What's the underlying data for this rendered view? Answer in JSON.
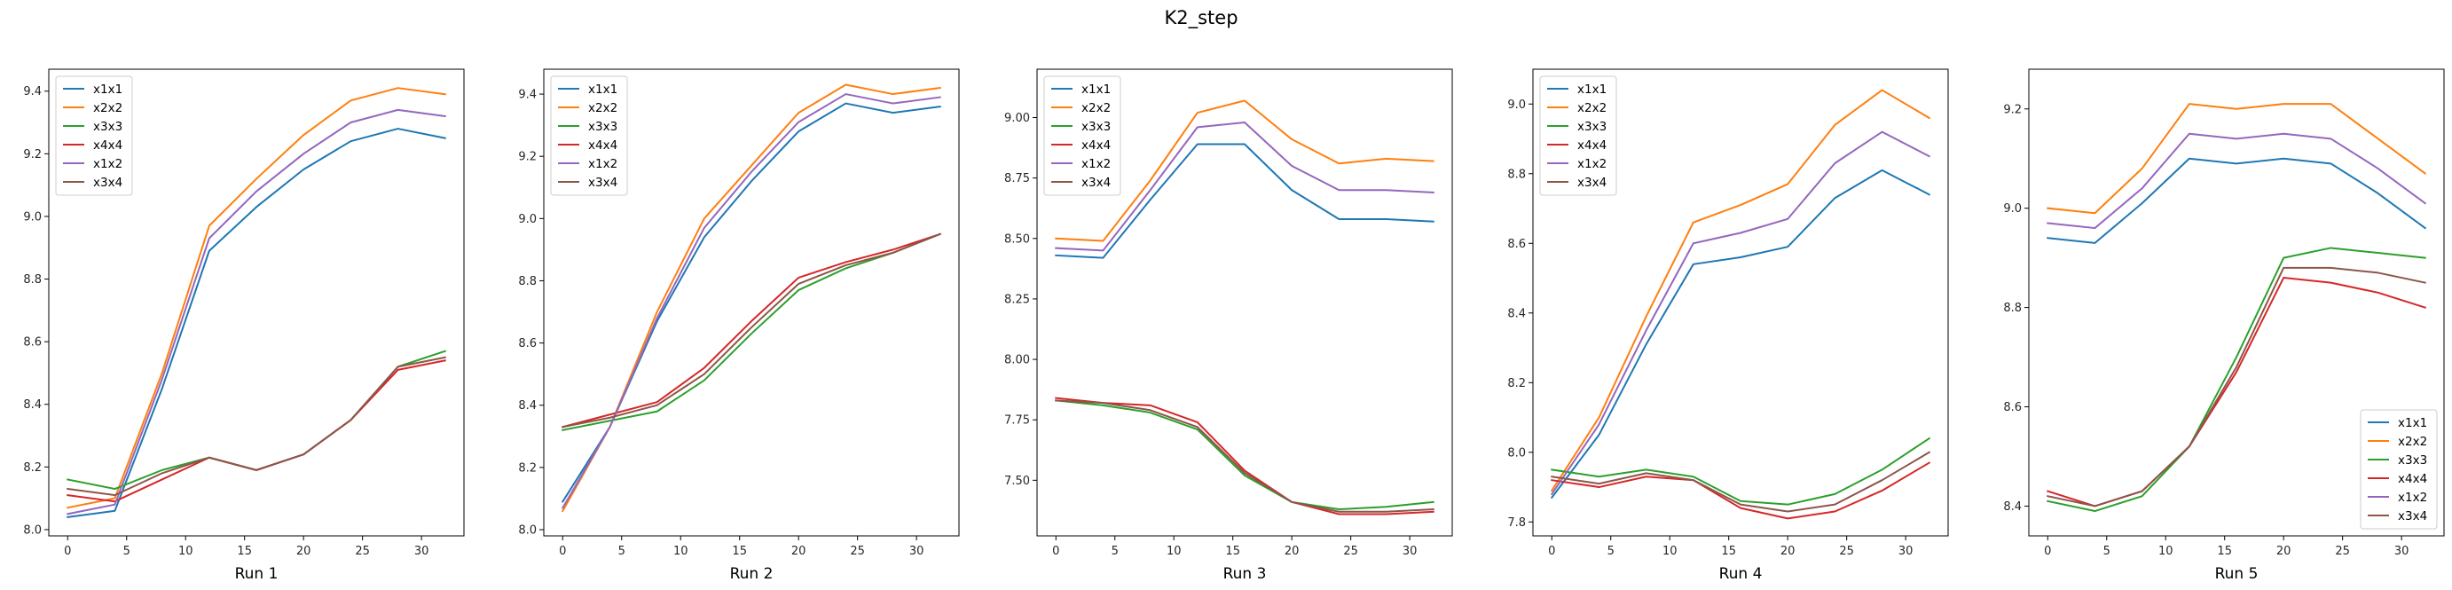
{
  "figure": {
    "title": "K2_step"
  },
  "colors": {
    "x1x1": "#1f77b4",
    "x2x2": "#ff7f0e",
    "x3x3": "#2ca02c",
    "x4x4": "#d62728",
    "x1x2": "#9467bd",
    "x3x4": "#8c564b"
  },
  "chart_data": [
    {
      "type": "line",
      "xlabel": "Run 1",
      "legend_loc": "upper-left",
      "x": [
        0,
        4,
        8,
        12,
        16,
        20,
        24,
        28,
        32
      ],
      "xticks": [
        "0",
        "5",
        "10",
        "15",
        "20",
        "25",
        "30"
      ],
      "xtick_values": [
        0,
        5,
        10,
        15,
        20,
        25,
        30
      ],
      "ylim": [
        7.98,
        9.47
      ],
      "yticks": [
        "8.0",
        "8.2",
        "8.4",
        "8.6",
        "8.8",
        "9.0",
        "9.2",
        "9.4"
      ],
      "ytick_values": [
        8.0,
        8.2,
        8.4,
        8.6,
        8.8,
        9.0,
        9.2,
        9.4
      ],
      "series": [
        {
          "name": "x1x1",
          "values": [
            8.04,
            8.06,
            8.45,
            8.89,
            9.03,
            9.15,
            9.24,
            9.28,
            9.25
          ]
        },
        {
          "name": "x2x2",
          "values": [
            8.07,
            8.1,
            8.5,
            8.97,
            9.12,
            9.26,
            9.37,
            9.41,
            9.39
          ]
        },
        {
          "name": "x3x3",
          "values": [
            8.16,
            8.13,
            8.19,
            8.23,
            8.19,
            8.24,
            8.35,
            8.52,
            8.57
          ]
        },
        {
          "name": "x4x4",
          "values": [
            8.11,
            8.09,
            8.16,
            8.23,
            8.19,
            8.24,
            8.35,
            8.51,
            8.54
          ]
        },
        {
          "name": "x1x2",
          "values": [
            8.05,
            8.08,
            8.48,
            8.93,
            9.08,
            9.2,
            9.3,
            9.34,
            9.32
          ]
        },
        {
          "name": "x3x4",
          "values": [
            8.13,
            8.11,
            8.18,
            8.23,
            8.19,
            8.24,
            8.35,
            8.52,
            8.55
          ]
        }
      ]
    },
    {
      "type": "line",
      "xlabel": "Run 2",
      "legend_loc": "upper-left",
      "x": [
        0,
        4,
        8,
        12,
        16,
        20,
        24,
        28,
        32
      ],
      "xticks": [
        "0",
        "5",
        "10",
        "15",
        "20",
        "25",
        "30"
      ],
      "xtick_values": [
        0,
        5,
        10,
        15,
        20,
        25,
        30
      ],
      "ylim": [
        7.98,
        9.48
      ],
      "yticks": [
        "8.0",
        "8.2",
        "8.4",
        "8.6",
        "8.8",
        "9.0",
        "9.2",
        "9.4"
      ],
      "ytick_values": [
        8.0,
        8.2,
        8.4,
        8.6,
        8.8,
        9.0,
        9.2,
        9.4
      ],
      "series": [
        {
          "name": "x1x1",
          "values": [
            8.09,
            8.33,
            8.67,
            8.94,
            9.12,
            9.28,
            9.37,
            9.34,
            9.36
          ]
        },
        {
          "name": "x2x2",
          "values": [
            8.06,
            8.33,
            8.7,
            9.0,
            9.17,
            9.34,
            9.43,
            9.4,
            9.42
          ]
        },
        {
          "name": "x3x3",
          "values": [
            8.32,
            8.35,
            8.38,
            8.48,
            8.63,
            8.77,
            8.84,
            8.89,
            8.95
          ]
        },
        {
          "name": "x4x4",
          "values": [
            8.33,
            8.37,
            8.41,
            8.52,
            8.67,
            8.81,
            8.86,
            8.9,
            8.95
          ]
        },
        {
          "name": "x1x2",
          "values": [
            8.07,
            8.33,
            8.68,
            8.97,
            9.15,
            9.31,
            9.4,
            9.37,
            9.39
          ]
        },
        {
          "name": "x3x4",
          "values": [
            8.33,
            8.36,
            8.4,
            8.5,
            8.65,
            8.79,
            8.85,
            8.89,
            8.95
          ]
        }
      ]
    },
    {
      "type": "line",
      "xlabel": "Run 3",
      "legend_loc": "upper-left",
      "x": [
        0,
        4,
        8,
        12,
        16,
        20,
        24,
        28,
        32
      ],
      "xticks": [
        "0",
        "5",
        "10",
        "15",
        "20",
        "25",
        "30"
      ],
      "xtick_values": [
        0,
        5,
        10,
        15,
        20,
        25,
        30
      ],
      "ylim": [
        7.27,
        9.2
      ],
      "yticks": [
        "7.50",
        "7.75",
        "8.00",
        "8.25",
        "8.50",
        "8.75",
        "9.00"
      ],
      "ytick_values": [
        7.5,
        7.75,
        8.0,
        8.25,
        8.5,
        8.75,
        9.0
      ],
      "series": [
        {
          "name": "x1x1",
          "values": [
            8.43,
            8.42,
            8.66,
            8.89,
            8.89,
            8.7,
            8.58,
            8.58,
            8.57
          ]
        },
        {
          "name": "x2x2",
          "values": [
            8.5,
            8.49,
            8.74,
            9.02,
            9.07,
            8.91,
            8.81,
            8.83,
            8.82
          ]
        },
        {
          "name": "x3x3",
          "values": [
            7.83,
            7.81,
            7.78,
            7.71,
            7.52,
            7.41,
            7.38,
            7.39,
            7.41
          ]
        },
        {
          "name": "x4x4",
          "values": [
            7.84,
            7.82,
            7.81,
            7.74,
            7.54,
            7.41,
            7.36,
            7.36,
            7.37
          ]
        },
        {
          "name": "x1x2",
          "values": [
            8.46,
            8.45,
            8.7,
            8.96,
            8.98,
            8.8,
            8.7,
            8.7,
            8.69
          ]
        },
        {
          "name": "x3x4",
          "values": [
            7.83,
            7.82,
            7.79,
            7.72,
            7.53,
            7.41,
            7.37,
            7.37,
            7.38
          ]
        }
      ]
    },
    {
      "type": "line",
      "xlabel": "Run 4",
      "legend_loc": "upper-left",
      "x": [
        0,
        4,
        8,
        12,
        16,
        20,
        24,
        28,
        32
      ],
      "xticks": [
        "0",
        "5",
        "10",
        "15",
        "20",
        "25",
        "30"
      ],
      "xtick_values": [
        0,
        5,
        10,
        15,
        20,
        25,
        30
      ],
      "ylim": [
        7.76,
        9.1
      ],
      "yticks": [
        "7.8",
        "8.0",
        "8.2",
        "8.4",
        "8.6",
        "8.8",
        "9.0"
      ],
      "ytick_values": [
        7.8,
        8.0,
        8.2,
        8.4,
        8.6,
        8.8,
        9.0
      ],
      "series": [
        {
          "name": "x1x1",
          "values": [
            7.87,
            8.05,
            8.31,
            8.54,
            8.56,
            8.59,
            8.73,
            8.81,
            8.74
          ]
        },
        {
          "name": "x2x2",
          "values": [
            7.89,
            8.1,
            8.39,
            8.66,
            8.71,
            8.77,
            8.94,
            9.04,
            8.96
          ]
        },
        {
          "name": "x3x3",
          "values": [
            7.95,
            7.93,
            7.95,
            7.93,
            7.86,
            7.85,
            7.88,
            7.95,
            8.04
          ]
        },
        {
          "name": "x4x4",
          "values": [
            7.92,
            7.9,
            7.93,
            7.92,
            7.84,
            7.81,
            7.83,
            7.89,
            7.97
          ]
        },
        {
          "name": "x1x2",
          "values": [
            7.88,
            8.08,
            8.35,
            8.6,
            8.63,
            8.67,
            8.83,
            8.92,
            8.85
          ]
        },
        {
          "name": "x3x4",
          "values": [
            7.93,
            7.91,
            7.94,
            7.92,
            7.85,
            7.83,
            7.85,
            7.92,
            8.0
          ]
        }
      ]
    },
    {
      "type": "line",
      "xlabel": "Run 5",
      "legend_loc": "lower-right",
      "x": [
        0,
        4,
        8,
        12,
        16,
        20,
        24,
        28,
        32
      ],
      "xticks": [
        "0",
        "5",
        "10",
        "15",
        "20",
        "25",
        "30"
      ],
      "xtick_values": [
        0,
        5,
        10,
        15,
        20,
        25,
        30
      ],
      "ylim": [
        8.34,
        9.28
      ],
      "yticks": [
        "8.4",
        "8.6",
        "8.8",
        "9.0",
        "9.2"
      ],
      "ytick_values": [
        8.4,
        8.6,
        8.8,
        9.0,
        9.2
      ],
      "series": [
        {
          "name": "x1x1",
          "values": [
            8.94,
            8.93,
            9.01,
            9.1,
            9.09,
            9.1,
            9.09,
            9.03,
            8.96
          ]
        },
        {
          "name": "x2x2",
          "values": [
            9.0,
            8.99,
            9.08,
            9.21,
            9.2,
            9.21,
            9.21,
            9.14,
            9.07
          ]
        },
        {
          "name": "x3x3",
          "values": [
            8.41,
            8.39,
            8.42,
            8.52,
            8.7,
            8.9,
            8.92,
            8.91,
            8.9
          ]
        },
        {
          "name": "x4x4",
          "values": [
            8.43,
            8.4,
            8.43,
            8.52,
            8.67,
            8.86,
            8.85,
            8.83,
            8.8
          ]
        },
        {
          "name": "x1x2",
          "values": [
            8.97,
            8.96,
            9.04,
            9.15,
            9.14,
            9.15,
            9.14,
            9.08,
            9.01
          ]
        },
        {
          "name": "x3x4",
          "values": [
            8.42,
            8.4,
            8.43,
            8.52,
            8.68,
            8.88,
            8.88,
            8.87,
            8.85
          ]
        }
      ]
    }
  ]
}
